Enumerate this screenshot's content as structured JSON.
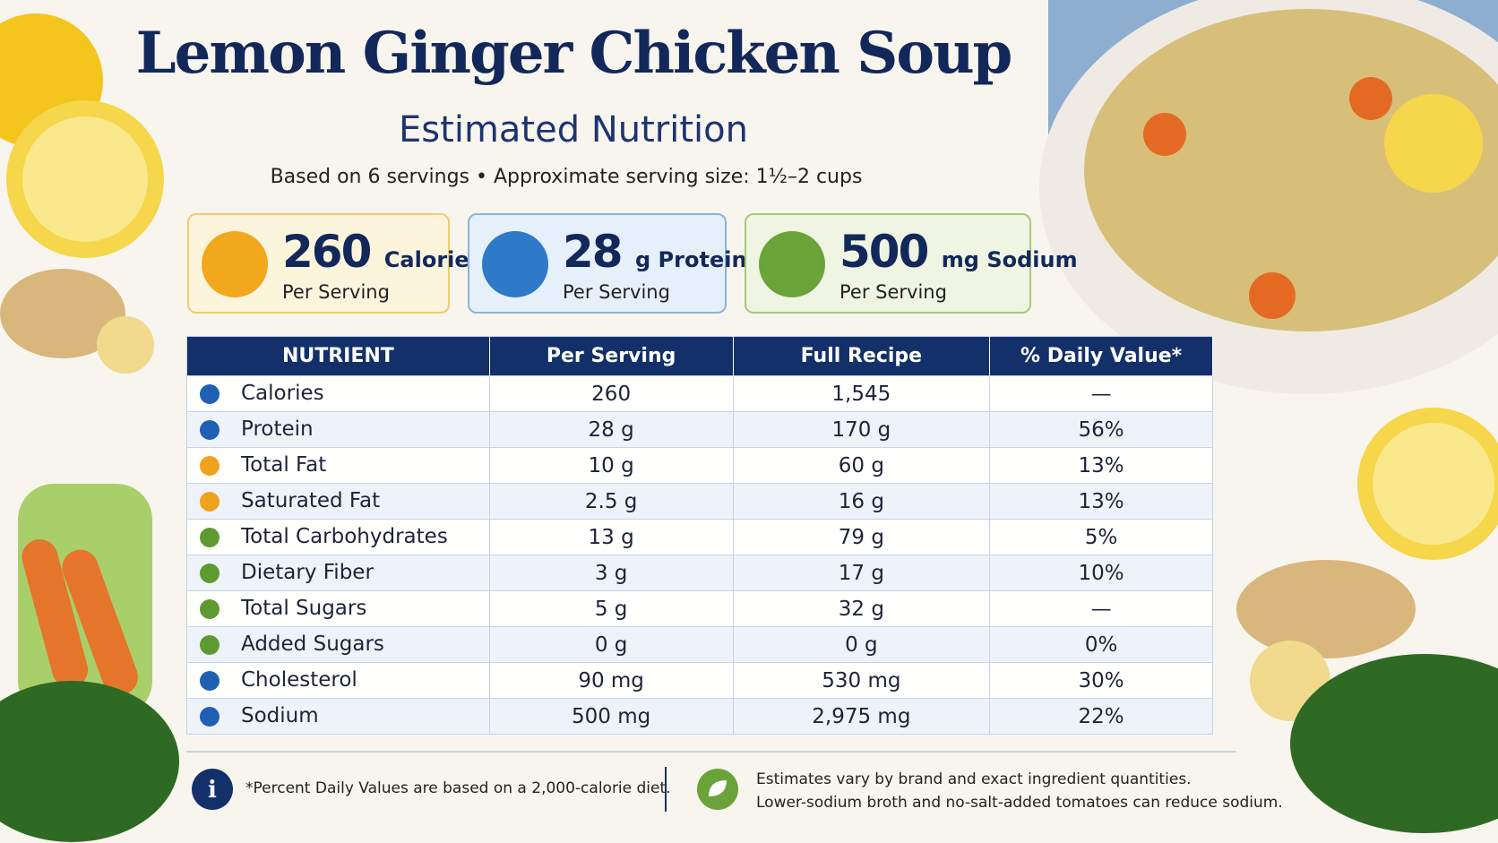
{
  "header": {
    "title": "Lemon Ginger Chicken Soup",
    "subtitle": "Estimated Nutrition",
    "note": "Based on 6 servings • Approximate serving size: 1½–2 cups"
  },
  "cards": [
    {
      "value": "260",
      "unit": "Calories",
      "sub": "Per Serving"
    },
    {
      "value": "28",
      "unit": "g Protein",
      "sub": "Per Serving"
    },
    {
      "value": "500",
      "unit": "mg Sodium",
      "sub": "Per Serving"
    }
  ],
  "table": {
    "headers": [
      "NUTRIENT",
      "Per Serving",
      "Full Recipe",
      "% Daily Value*"
    ],
    "rows": [
      [
        "Calories",
        "260",
        "1,545",
        "—"
      ],
      [
        "Protein",
        "28 g",
        "170 g",
        "56%"
      ],
      [
        "Total Fat",
        "10 g",
        "60 g",
        "13%"
      ],
      [
        "Saturated Fat",
        "2.5 g",
        "16 g",
        "13%"
      ],
      [
        "Total Carbohydrates",
        "13 g",
        "79 g",
        "5%"
      ],
      [
        "Dietary Fiber",
        "3 g",
        "17 g",
        "10%"
      ],
      [
        "Total Sugars",
        "5 g",
        "32 g",
        "—"
      ],
      [
        "Added Sugars",
        "0 g",
        "0 g",
        "0%"
      ],
      [
        "Cholesterol",
        "90 mg",
        "530 mg",
        "30%"
      ],
      [
        "Sodium",
        "500 mg",
        "2,975 mg",
        "22%"
      ]
    ]
  },
  "footer": {
    "daily_value_note": "*Percent Daily Values are based on a 2,000-calorie diet.",
    "estimate_note": [
      "Estimates vary by brand and exact ingredient quantities.",
      "Lower-sodium broth and no-salt-added tomatoes can reduce sodium."
    ]
  }
}
